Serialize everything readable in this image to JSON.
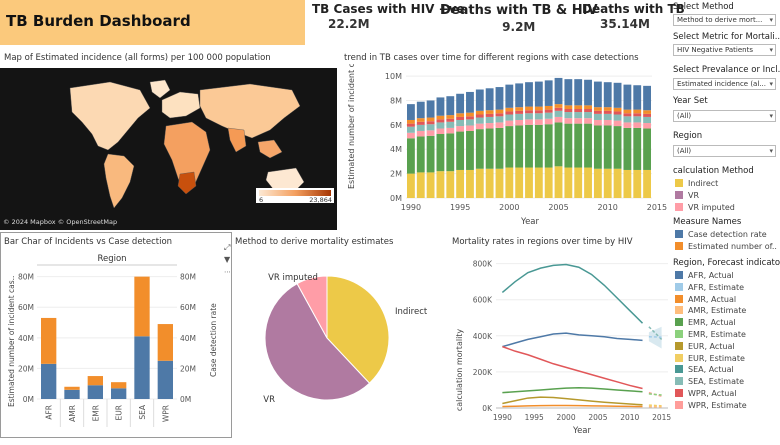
{
  "header": {
    "title": "TB Burden Dashboard",
    "kpis": [
      {
        "label": "TB Cases with HIV +ve",
        "value": "22.2M"
      },
      {
        "label": "Deaths with TB & HIV",
        "value": "9.2M"
      },
      {
        "label": "Deaths with TB",
        "value": "35.14M"
      }
    ]
  },
  "map": {
    "title": "Map of Estimated incidence (all forms) per 100 000 population",
    "legend_min": "6",
    "legend_max": "23,864",
    "attribution": "© 2024 Mapbox © OpenStreetMap"
  },
  "controls": [
    {
      "label": "Select Method",
      "value": "Method to derive mort..."
    },
    {
      "label": "Select Metric for Mortali..",
      "value": "HIV Negative Patients"
    },
    {
      "label": "Select Prevalance or Incl..",
      "value": "Estimated incidence (al..."
    },
    {
      "label": "Year Set",
      "value": "(All)"
    },
    {
      "label": "Region",
      "value": "(All)"
    }
  ],
  "legends": {
    "calc_method": {
      "title": "calculation Method",
      "items": [
        {
          "label": "Indirect",
          "color": "#edc948"
        },
        {
          "label": "VR",
          "color": "#b07aa1"
        },
        {
          "label": "VR imputed",
          "color": "#ff9da7"
        }
      ]
    },
    "measure_names": {
      "title": "Measure Names",
      "items": [
        {
          "label": "Case detection rate",
          "color": "#4e79a7"
        },
        {
          "label": "Estimated number of..",
          "color": "#f28e2b"
        }
      ]
    },
    "region_forecast": {
      "title": "Region, Forecast indicator",
      "items": [
        {
          "label": "AFR, Actual",
          "color": "#4e79a7"
        },
        {
          "label": "AFR, Estimate",
          "color": "#a0cbe8"
        },
        {
          "label": "AMR, Actual",
          "color": "#f28e2b"
        },
        {
          "label": "AMR, Estimate",
          "color": "#ffbe7d"
        },
        {
          "label": "EMR, Actual",
          "color": "#59a14f"
        },
        {
          "label": "EMR, Estimate",
          "color": "#8cd17d"
        },
        {
          "label": "EUR, Actual",
          "color": "#b6992d"
        },
        {
          "label": "EUR, Estimate",
          "color": "#f1ce63"
        },
        {
          "label": "SEA, Actual",
          "color": "#499894"
        },
        {
          "label": "SEA, Estimate",
          "color": "#86bcb6"
        },
        {
          "label": "WPR, Actual",
          "color": "#e15759"
        },
        {
          "label": "WPR, Estimate",
          "color": "#ff9d9a"
        }
      ]
    }
  },
  "chart_data": [
    {
      "id": "trend",
      "type": "bar",
      "title": "trend in TB cases over time for different regions with case detections",
      "xlabel": "Year",
      "ylabel": "Estimated number of incident cases (all forms)",
      "ylim": [
        0,
        10500000
      ],
      "yticks": [
        0,
        2000000,
        4000000,
        6000000,
        8000000,
        10000000
      ],
      "ytick_labels": [
        "0M",
        "2M",
        "4M",
        "6M",
        "8M",
        "10M"
      ],
      "x_tick_labels": [
        "1990",
        "1995",
        "2000",
        "2005",
        "2010",
        "2015"
      ],
      "stacked": true,
      "x": [
        1990,
        1991,
        1992,
        1993,
        1994,
        1995,
        1996,
        1997,
        1998,
        1999,
        2000,
        2001,
        2002,
        2003,
        2004,
        2005,
        2006,
        2007,
        2008,
        2009,
        2010,
        2011,
        2012,
        2013,
        2014
      ],
      "series": [
        {
          "color": "#edc948",
          "values": [
            2.0,
            2.1,
            2.1,
            2.2,
            2.2,
            2.3,
            2.3,
            2.4,
            2.4,
            2.4,
            2.5,
            2.5,
            2.5,
            2.5,
            2.5,
            2.6,
            2.5,
            2.5,
            2.5,
            2.4,
            2.4,
            2.4,
            2.3,
            2.3,
            2.3
          ]
        },
        {
          "color": "#59a14f",
          "values": [
            2.9,
            2.95,
            3.0,
            3.05,
            3.1,
            3.15,
            3.2,
            3.25,
            3.3,
            3.35,
            3.4,
            3.45,
            3.5,
            3.5,
            3.55,
            3.6,
            3.6,
            3.6,
            3.6,
            3.55,
            3.55,
            3.5,
            3.45,
            3.45,
            3.4
          ]
        },
        {
          "color": "#ff9da7",
          "values": [
            0.45,
            0.45,
            0.45,
            0.45,
            0.45,
            0.45,
            0.45,
            0.45,
            0.45,
            0.45,
            0.45,
            0.45,
            0.45,
            0.45,
            0.45,
            0.45,
            0.45,
            0.45,
            0.45,
            0.45,
            0.45,
            0.45,
            0.45,
            0.45,
            0.45
          ]
        },
        {
          "color": "#86bcb6",
          "values": [
            0.5,
            0.5,
            0.5,
            0.5,
            0.5,
            0.5,
            0.5,
            0.5,
            0.5,
            0.5,
            0.5,
            0.5,
            0.5,
            0.5,
            0.5,
            0.5,
            0.5,
            0.5,
            0.5,
            0.5,
            0.5,
            0.5,
            0.5,
            0.5,
            0.5
          ]
        },
        {
          "color": "#e15759",
          "values": [
            0.25,
            0.25,
            0.25,
            0.25,
            0.25,
            0.25,
            0.25,
            0.25,
            0.25,
            0.25,
            0.25,
            0.25,
            0.25,
            0.25,
            0.25,
            0.25,
            0.25,
            0.25,
            0.25,
            0.25,
            0.25,
            0.25,
            0.25,
            0.25,
            0.25
          ]
        },
        {
          "color": "#f28e2b",
          "values": [
            0.3,
            0.3,
            0.3,
            0.3,
            0.3,
            0.3,
            0.3,
            0.3,
            0.3,
            0.3,
            0.3,
            0.3,
            0.3,
            0.3,
            0.3,
            0.3,
            0.3,
            0.3,
            0.3,
            0.3,
            0.3,
            0.3,
            0.3,
            0.3,
            0.3
          ]
        },
        {
          "color": "#4e79a7",
          "values": [
            1.3,
            1.35,
            1.4,
            1.5,
            1.55,
            1.6,
            1.7,
            1.75,
            1.8,
            1.85,
            1.9,
            1.95,
            2.0,
            2.05,
            2.1,
            2.15,
            2.15,
            2.15,
            2.1,
            2.1,
            2.05,
            2.05,
            2.05,
            2.0,
            2.0
          ]
        }
      ],
      "value_scale": 1000000
    },
    {
      "id": "incidents",
      "type": "bar",
      "title": "Bar Char of Incidents vs Case detection",
      "header": "Region",
      "ylabel": "Estimated number of incident cas..",
      "ylabel_right": "Case detection rate",
      "categories": [
        "AFR",
        "AMR",
        "EMR",
        "EUR",
        "SEA",
        "WPR"
      ],
      "ylim": [
        0,
        85000000
      ],
      "ytick_labels": [
        "0M",
        "20M",
        "40M",
        "60M",
        "80M"
      ],
      "yticks": [
        0,
        20000000,
        40000000,
        60000000,
        80000000
      ],
      "ytick_labels_right": [
        "0M",
        "20M",
        "40M",
        "60M",
        "80M"
      ],
      "stacked": true,
      "series": [
        {
          "name": "Case detection rate",
          "color": "#4e79a7",
          "values": [
            23,
            6,
            9,
            7,
            41,
            25
          ]
        },
        {
          "name": "Estimated number of..",
          "color": "#f28e2b",
          "values": [
            30,
            2,
            6,
            4,
            39,
            24
          ]
        }
      ],
      "value_scale": 1000000
    },
    {
      "id": "pie",
      "type": "pie",
      "title": "Method to derive mortality estimates",
      "slices": [
        {
          "label": "Indirect",
          "value": 38,
          "color": "#edc948"
        },
        {
          "label": "VR",
          "value": 54,
          "color": "#b07aa1"
        },
        {
          "label": "VR imputed",
          "value": 8,
          "color": "#ff9da7"
        }
      ]
    },
    {
      "id": "mortality",
      "type": "line",
      "title": "Mortality rates in regions over time by HIV",
      "xlabel": "Year",
      "ylabel": "calculation mortality",
      "ylim": [
        0,
        820000
      ],
      "yticks": [
        0,
        200000,
        400000,
        600000,
        800000
      ],
      "ytick_labels": [
        "0K",
        "200K",
        "400K",
        "600K",
        "800K"
      ],
      "x_tick_labels": [
        "1990",
        "1995",
        "2000",
        "2005",
        "2010",
        "2015"
      ],
      "xlim": [
        1989,
        2016
      ],
      "series": [
        {
          "color": "#499894",
          "x": [
            1990,
            1992,
            1994,
            1996,
            1998,
            2000,
            2002,
            2004,
            2006,
            2008,
            2010,
            2012
          ],
          "values": [
            640000,
            700000,
            750000,
            775000,
            790000,
            795000,
            780000,
            740000,
            680000,
            610000,
            540000,
            470000
          ]
        },
        {
          "color": "#4e79a7",
          "x": [
            1990,
            1992,
            1994,
            1996,
            1998,
            2000,
            2002,
            2004,
            2006,
            2008,
            2010,
            2012
          ],
          "values": [
            340000,
            360000,
            380000,
            395000,
            410000,
            415000,
            405000,
            400000,
            395000,
            385000,
            380000,
            375000
          ]
        },
        {
          "color": "#e15759",
          "x": [
            1990,
            1992,
            1994,
            1996,
            1998,
            2000,
            2002,
            2004,
            2006,
            2008,
            2010,
            2012
          ],
          "values": [
            340000,
            315000,
            295000,
            270000,
            245000,
            225000,
            205000,
            185000,
            165000,
            145000,
            125000,
            108000
          ]
        },
        {
          "color": "#59a14f",
          "x": [
            1990,
            1992,
            1994,
            1996,
            1998,
            2000,
            2002,
            2004,
            2006,
            2008,
            2010,
            2012
          ],
          "values": [
            85000,
            90000,
            95000,
            100000,
            105000,
            110000,
            112000,
            110000,
            105000,
            100000,
            95000,
            90000
          ]
        },
        {
          "color": "#b6992d",
          "x": [
            1990,
            1992,
            1994,
            1996,
            1998,
            2000,
            2002,
            2004,
            2006,
            2008,
            2010,
            2012
          ],
          "values": [
            25000,
            40000,
            55000,
            60000,
            58000,
            52000,
            45000,
            38000,
            32000,
            27000,
            22000,
            18000
          ]
        },
        {
          "color": "#f28e2b",
          "x": [
            1990,
            1992,
            1994,
            1996,
            1998,
            2000,
            2002,
            2004,
            2006,
            2008,
            2010,
            2012
          ],
          "values": [
            8000,
            10000,
            12000,
            13000,
            14000,
            14000,
            13000,
            12000,
            11000,
            10000,
            9000,
            8000
          ]
        }
      ],
      "forecast": [
        {
          "color": "#86bcb6",
          "x": [
            2013,
            2015
          ],
          "values": [
            450000,
            380000
          ]
        },
        {
          "color": "#a0cbe8",
          "x": [
            2013,
            2015
          ],
          "values": [
            395000,
            392000
          ]
        },
        {
          "color": "#ff9d9a",
          "x": [
            2013,
            2015
          ],
          "values": [
            85000,
            65000
          ]
        },
        {
          "color": "#8cd17d",
          "x": [
            2013,
            2015
          ],
          "values": [
            78000,
            72000
          ]
        },
        {
          "color": "#f1ce63",
          "x": [
            2013,
            2015
          ],
          "values": [
            16000,
            12000
          ]
        },
        {
          "color": "#ffbe7d",
          "x": [
            2013,
            2015
          ],
          "values": [
            7000,
            6000
          ]
        }
      ]
    }
  ]
}
